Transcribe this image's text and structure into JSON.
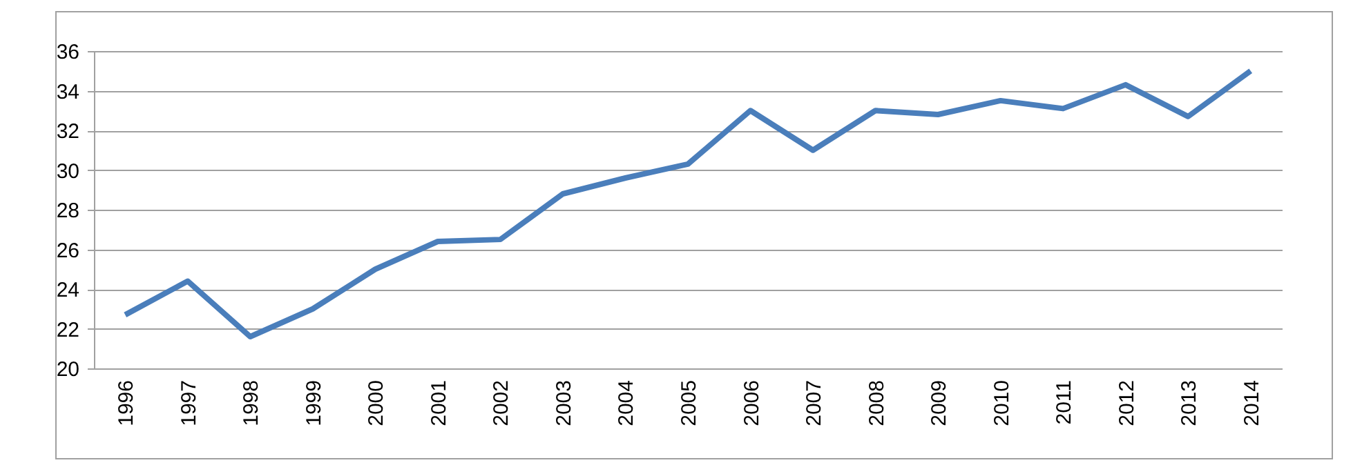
{
  "chart_data": {
    "type": "line",
    "categories": [
      "1996",
      "1997",
      "1998",
      "1999",
      "2000",
      "2001",
      "2002",
      "2003",
      "2004",
      "2005",
      "2006",
      "2007",
      "2008",
      "2009",
      "2010",
      "2011",
      "2012",
      "2013",
      "2014"
    ],
    "series": [
      {
        "color": "#4a7ebb",
        "values": [
          22.7,
          24.4,
          21.6,
          23.0,
          25.0,
          26.4,
          26.5,
          28.8,
          29.6,
          30.3,
          33.0,
          31.0,
          33.0,
          32.8,
          33.5,
          33.1,
          34.3,
          32.7,
          35.0
        ]
      }
    ],
    "ylim": [
      20,
      36
    ],
    "yticks": [
      20,
      22,
      24,
      26,
      28,
      30,
      32,
      34,
      36
    ],
    "grid": "y",
    "marker": "none",
    "line_style": "solid"
  }
}
